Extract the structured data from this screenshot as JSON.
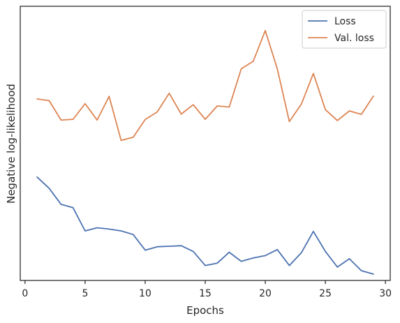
{
  "chart_data": {
    "type": "line",
    "title": "",
    "xlabel": "Epochs",
    "ylabel": "Negative log-likelihood",
    "xlim": [
      -0.4,
      30.4
    ],
    "ylim": [
      0,
      1
    ],
    "x_ticks": [
      0,
      5,
      10,
      15,
      20,
      25,
      30
    ],
    "y_ticks_shown": false,
    "grid": false,
    "legend_position": "top-right",
    "x": [
      1,
      2,
      3,
      4,
      5,
      6,
      7,
      8,
      9,
      10,
      11,
      12,
      13,
      14,
      15,
      16,
      17,
      18,
      19,
      20,
      21,
      22,
      23,
      24,
      25,
      26,
      27,
      28,
      29
    ],
    "series": [
      {
        "name": "Loss",
        "color": "#4c72b0",
        "values": [
          0.384,
          0.341,
          0.279,
          0.266,
          0.177,
          0.189,
          0.184,
          0.177,
          0.163,
          0.103,
          0.116,
          0.118,
          0.12,
          0.098,
          0.044,
          0.053,
          0.095,
          0.06,
          0.073,
          0.082,
          0.105,
          0.044,
          0.093,
          0.175,
          0.098,
          0.038,
          0.07,
          0.024,
          0.011
        ]
      },
      {
        "name": "Val. loss",
        "color": "#dd8452",
        "values": [
          0.684,
          0.678,
          0.603,
          0.606,
          0.666,
          0.603,
          0.694,
          0.525,
          0.537,
          0.605,
          0.634,
          0.706,
          0.626,
          0.662,
          0.606,
          0.657,
          0.653,
          0.8,
          0.829,
          0.947,
          0.8,
          0.597,
          0.664,
          0.782,
          0.643,
          0.601,
          0.638,
          0.625,
          0.695
        ]
      }
    ]
  }
}
